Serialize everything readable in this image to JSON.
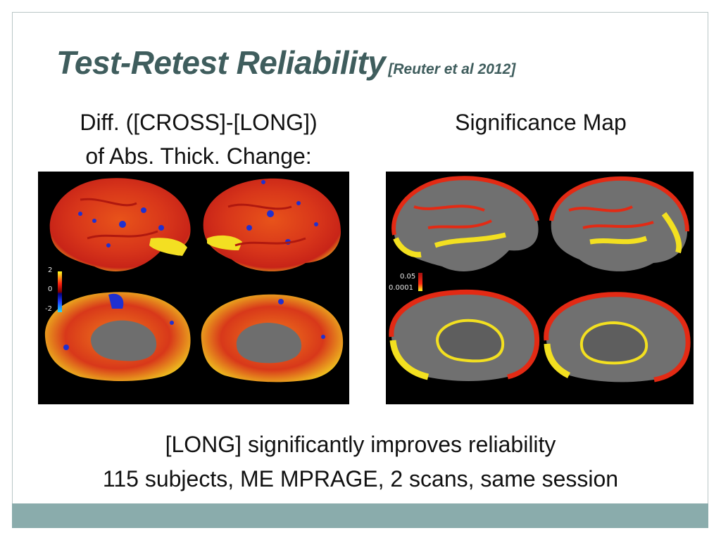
{
  "title": {
    "main": "Test-Retest Reliability",
    "citation": "[Reuter et al 2012]"
  },
  "left_panel": {
    "caption_line1": "Diff. ([CROSS]-[LONG])",
    "caption_line2": "of Abs. Thick. Change:",
    "colorbar": {
      "top": "2",
      "mid": "0",
      "bottom": "-2"
    }
  },
  "right_panel": {
    "caption": "Significance Map",
    "colorbar": {
      "top": "0.05",
      "bottom": "0.0001"
    }
  },
  "bottom": {
    "line1": "[LONG] significantly improves reliability",
    "line2": "115 subjects, ME MPRAGE, 2 scans, same session"
  },
  "colors": {
    "title": "#3f5d5d",
    "footer_bar": "#8aacac",
    "slide_border": "#b9c6c6"
  }
}
